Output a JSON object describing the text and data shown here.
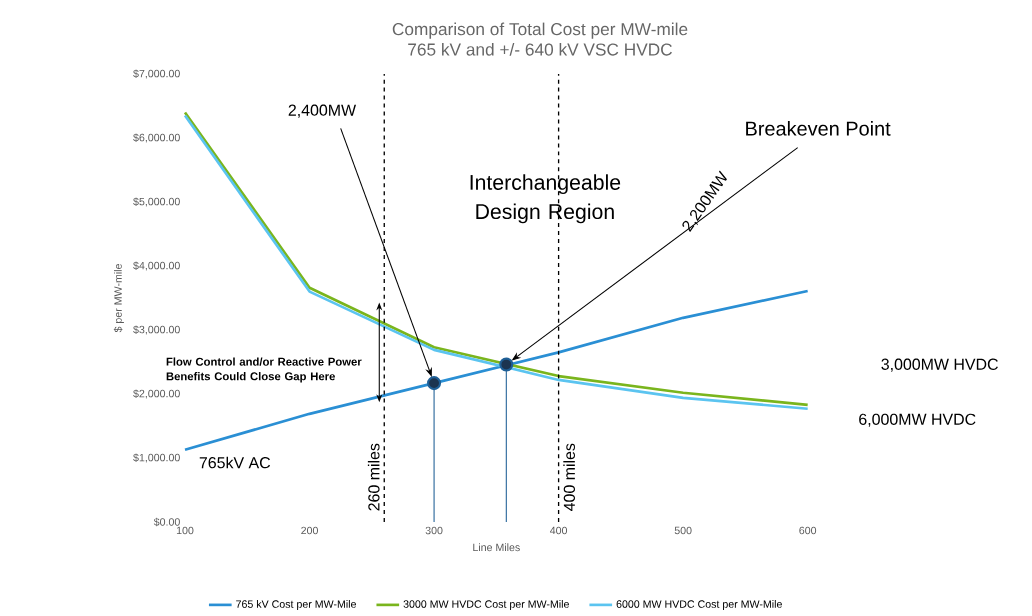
{
  "chart_data": {
    "type": "line",
    "title": "Comparison of Total Cost per MW-mile",
    "subtitle": "765 kV and +/- 640 kV VSC HVDC",
    "xlabel": "Line Miles",
    "ylabel": "$ per MW-mile",
    "x": [
      100,
      200,
      300,
      400,
      500,
      600
    ],
    "series": [
      {
        "name": "765 kV Cost per MW-Mile",
        "color": "#2a8fd4",
        "values": [
          1130,
          1690,
          2170,
          2650,
          3190,
          3610
        ]
      },
      {
        "name": "3000 MW HVDC Cost per MW-Mile",
        "color": "#7ab51d",
        "values": [
          6400,
          3660,
          2730,
          2280,
          2020,
          1830
        ]
      },
      {
        "name": "6000 MW HVDC Cost per MW-Mile",
        "color": "#5bc4f0",
        "values": [
          6350,
          3600,
          2690,
          2220,
          1940,
          1770
        ]
      },
      {
        "type": "lollipop",
        "color": "#1f5f96",
        "marker": "circle",
        "x": [
          300,
          358
        ],
        "values": [
          2170,
          2460
        ]
      }
    ],
    "xlim": [
      100,
      600
    ],
    "ylim": [
      0,
      7000
    ],
    "xticks": [
      100,
      200,
      300,
      400,
      500,
      600
    ],
    "yticks": [
      {
        "value": 0,
        "label": "$0.00"
      },
      {
        "value": 1000,
        "label": "$1,000.00"
      },
      {
        "value": 2000,
        "label": "$2,000.00"
      },
      {
        "value": 3000,
        "label": "$3,000.00"
      },
      {
        "value": 4000,
        "label": "$4,000.00"
      },
      {
        "value": 5000,
        "label": "$5,000.00"
      },
      {
        "value": 6000,
        "label": "$6,000.00"
      },
      {
        "value": 7000,
        "label": "$7,000.00"
      }
    ],
    "ref_lines": [
      {
        "axis": "x",
        "value": 260,
        "label": "260 miles",
        "color": "#000000",
        "line_style": "dashed"
      },
      {
        "axis": "x",
        "value": 400,
        "label": "400 miles",
        "color": "#000000",
        "line_style": "dashed"
      }
    ],
    "annotations": [
      "2,400MW",
      "Breakeven Point",
      "2,200MW",
      "Interchangeable Design Region",
      "Flow Control and/or Reactive Power Benefits Could Close Gap Here",
      "3,000MW HVDC",
      "6,000MW HVDC",
      "765kV AC"
    ],
    "legend": "bottom",
    "grid": false,
    "line_style": "solid"
  }
}
